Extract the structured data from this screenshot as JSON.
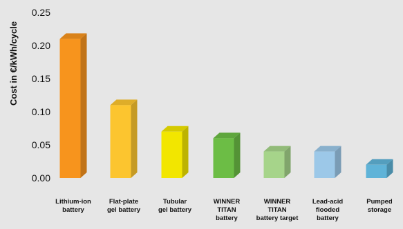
{
  "chart_data": {
    "type": "bar",
    "ylabel": "Cost in €/kWh/cycle",
    "ylim": [
      0,
      0.25
    ],
    "yticks": [
      "0.00",
      "0.05",
      "0.10",
      "0.15",
      "0.20",
      "0.25"
    ],
    "categories": [
      "Lithium-ion\nbattery",
      "Flat-plate\ngel battery",
      "Tubular\ngel battery",
      "WINNER\nTITAN\nbattery",
      "WINNER\nTITAN\nbattery target",
      "Lead-acid\nflooded\nbattery",
      "Pumped\nstorage"
    ],
    "values": [
      0.21,
      0.11,
      0.07,
      0.06,
      0.04,
      0.04,
      0.02
    ],
    "colors": [
      "#f7941d",
      "#fcc52f",
      "#f2e600",
      "#6cbd45",
      "#a6d48a",
      "#9cc8e8",
      "#5fb3d8"
    ],
    "grid": false,
    "legend": "none"
  }
}
